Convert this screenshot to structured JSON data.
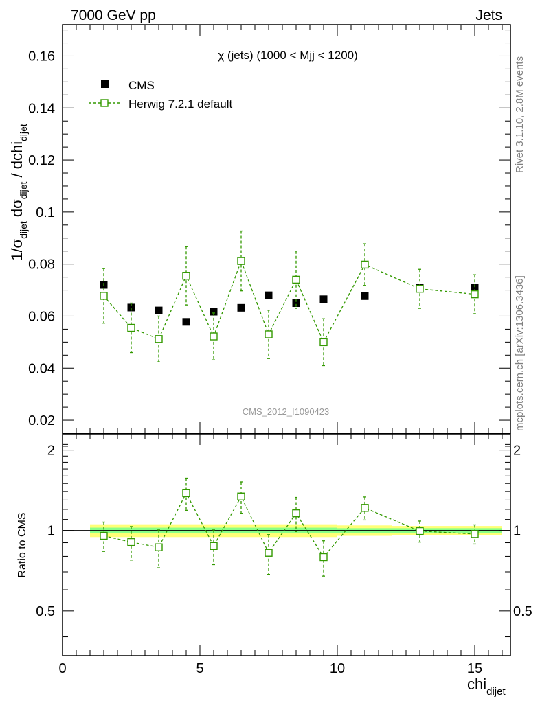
{
  "header": {
    "left": "7000 GeV pp",
    "right": "Jets"
  },
  "side_labels": {
    "rivet": "Rivet 3.1.10,  2.8M events",
    "mcplots": "mcplots.cern.ch [arXiv:1306.3436]"
  },
  "chart_data": {
    "type": "scatter",
    "title": "χ (jets) (1000 < Mjj < 1200)",
    "watermark": "CMS_2012_I1090423",
    "xlabel": {
      "main": "chi",
      "sub": "dijet"
    },
    "ylabel": {
      "text": "1/σ_dijet dσ_dijet / dchi_dijet"
    },
    "ratio_ylabel": "Ratio to CMS",
    "xlim": [
      0,
      16.3
    ],
    "ylim": [
      0.015,
      0.172
    ],
    "ratio_ylim": [
      0.34,
      2.3
    ],
    "x_ticks": [
      "0",
      "5",
      "10",
      "15"
    ],
    "y_ticks": [
      "0.02",
      "0.04",
      "0.06",
      "0.08",
      "0.1",
      "0.12",
      "0.14",
      "0.16"
    ],
    "ratio_ticks": [
      "0.5",
      "1",
      "2"
    ],
    "legend": {
      "position": "top-left"
    },
    "series": [
      {
        "name": "CMS",
        "color": "#000000",
        "marker": "filled-square",
        "x": [
          1.5,
          2.5,
          3.5,
          4.5,
          5.5,
          6.5,
          7.5,
          8.5,
          9.5,
          11.0,
          13.0,
          15.0
        ],
        "x_err": [
          0.5,
          0.5,
          0.5,
          0.5,
          0.5,
          0.5,
          0.5,
          0.5,
          0.5,
          1.0,
          1.0,
          1.0
        ],
        "y": [
          0.072,
          0.0633,
          0.0622,
          0.0578,
          0.0617,
          0.0632,
          0.068,
          0.065,
          0.0665,
          0.0677,
          0.0708,
          0.071
        ]
      },
      {
        "name": "Herwig 7.2.1 default",
        "color": "#339900",
        "marker": "open-square",
        "line": "dashed",
        "x": [
          1.5,
          2.5,
          3.5,
          4.5,
          5.5,
          6.5,
          7.5,
          8.5,
          9.5,
          11.0,
          13.0,
          15.0
        ],
        "y": [
          0.0678,
          0.0555,
          0.0512,
          0.0755,
          0.0522,
          0.0812,
          0.053,
          0.074,
          0.05,
          0.0798,
          0.0705,
          0.0684
        ],
        "y_err": [
          0.0105,
          0.0095,
          0.0088,
          0.0112,
          0.009,
          0.0115,
          0.0093,
          0.011,
          0.009,
          0.008,
          0.0075,
          0.0075
        ],
        "ratio": [
          0.955,
          0.905,
          0.865,
          1.38,
          0.875,
          1.34,
          0.825,
          1.16,
          0.795,
          1.215,
          0.995,
          0.97
        ],
        "ratio_err": [
          0.12,
          0.13,
          0.14,
          0.19,
          0.13,
          0.18,
          0.14,
          0.17,
          0.12,
          0.12,
          0.09,
          0.08
        ]
      }
    ],
    "reference_band": {
      "x_edges": [
        1.0,
        2.0,
        3.0,
        4.0,
        5.0,
        6.0,
        7.0,
        8.0,
        9.0,
        10.0,
        12.0,
        14.0,
        16.0
      ],
      "inner_half_width": [
        0.025,
        0.025,
        0.025,
        0.025,
        0.025,
        0.025,
        0.025,
        0.025,
        0.025,
        0.02,
        0.02,
        0.02
      ],
      "outer_half_width": [
        0.055,
        0.055,
        0.055,
        0.055,
        0.055,
        0.055,
        0.055,
        0.055,
        0.055,
        0.045,
        0.04,
        0.04
      ],
      "inner_color": "#88ff88",
      "outer_color": "#ffff77"
    }
  }
}
